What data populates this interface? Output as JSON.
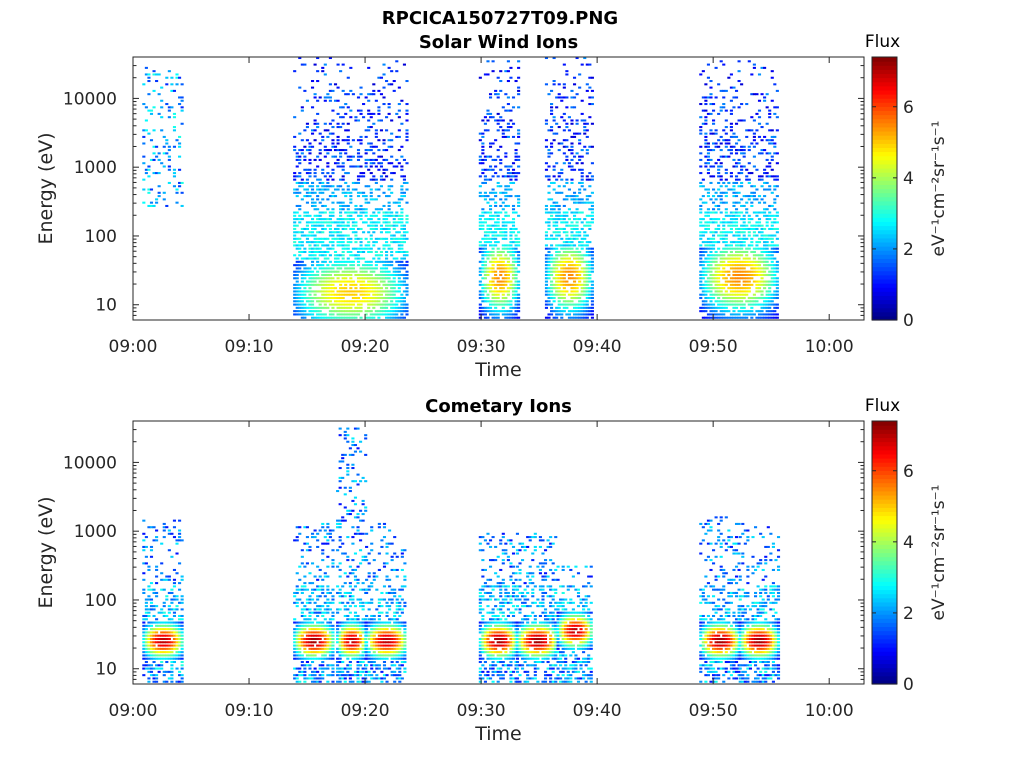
{
  "figure_title": "RPCICA150727T09.PNG",
  "chart_data": [
    {
      "type": "heatmap",
      "title": "Solar Wind Ions",
      "xlabel": "Time",
      "ylabel": "Energy (eV)",
      "x_ticks": [
        "09:00",
        "09:10",
        "09:20",
        "09:30",
        "09:40",
        "09:50",
        "10:00"
      ],
      "x_range_minutes": [
        0,
        63
      ],
      "y_scale": "log",
      "y_ticks": [
        10,
        100,
        1000,
        10000
      ],
      "y_range": [
        6,
        40000
      ],
      "colorbar": {
        "label": "eV⁻¹cm⁻²sr⁻¹s⁻¹",
        "title": "Flux",
        "ticks": [
          0,
          2,
          4,
          6
        ],
        "range": [
          0,
          7.4
        ],
        "colormap": "jet"
      },
      "bursts": [
        {
          "start_min": 0.8,
          "end_min": 4.2,
          "core_energy_eV": null,
          "peak_flux": 3.0,
          "max_energy_eV": 28000
        },
        {
          "start_min": 13.8,
          "end_min": 23.5,
          "core_energy_eV": 15,
          "peak_flux": 5.0,
          "max_energy_eV": 38000
        },
        {
          "start_min": 29.8,
          "end_min": 33.2,
          "core_energy_eV": 25,
          "peak_flux": 5.5,
          "max_energy_eV": 38000
        },
        {
          "start_min": 35.5,
          "end_min": 39.5,
          "core_energy_eV": 25,
          "peak_flux": 5.5,
          "max_energy_eV": 38000
        },
        {
          "start_min": 48.8,
          "end_min": 55.5,
          "core_energy_eV": 25,
          "peak_flux": 5.5,
          "max_energy_eV": 38000
        }
      ]
    },
    {
      "type": "heatmap",
      "title": "Cometary Ions",
      "xlabel": "Time",
      "ylabel": "Energy (eV)",
      "x_ticks": [
        "09:00",
        "09:10",
        "09:20",
        "09:30",
        "09:40",
        "09:50",
        "10:00"
      ],
      "x_range_minutes": [
        0,
        63
      ],
      "y_scale": "log",
      "y_ticks": [
        10,
        100,
        1000,
        10000
      ],
      "y_range": [
        6,
        40000
      ],
      "colorbar": {
        "label": "eV⁻¹cm⁻²sr⁻¹s⁻¹",
        "title": "Flux",
        "ticks": [
          0,
          2,
          4,
          6
        ],
        "range": [
          0,
          7.4
        ],
        "colormap": "jet"
      },
      "bursts": [
        {
          "start_min": 0.8,
          "end_min": 4.2,
          "core_energy_eV": 25,
          "peak_flux": 7.0,
          "max_energy_eV": 1500
        },
        {
          "start_min": 13.8,
          "end_min": 17.2,
          "core_energy_eV": 25,
          "peak_flux": 7.2,
          "max_energy_eV": 1300
        },
        {
          "start_min": 17.5,
          "end_min": 20.0,
          "core_energy_eV": 25,
          "peak_flux": 7.0,
          "max_energy_eV": 33000
        },
        {
          "start_min": 20.0,
          "end_min": 23.5,
          "core_energy_eV": 25,
          "peak_flux": 7.0,
          "max_energy_eV": 1300
        },
        {
          "start_min": 29.8,
          "end_min": 33.0,
          "core_energy_eV": 25,
          "peak_flux": 7.2,
          "max_energy_eV": 1000
        },
        {
          "start_min": 33.0,
          "end_min": 36.5,
          "core_energy_eV": 25,
          "peak_flux": 7.2,
          "max_energy_eV": 1000
        },
        {
          "start_min": 36.5,
          "end_min": 39.5,
          "core_energy_eV": 35,
          "peak_flux": 7.0,
          "max_energy_eV": 300
        },
        {
          "start_min": 48.8,
          "end_min": 52.2,
          "core_energy_eV": 25,
          "peak_flux": 7.2,
          "max_energy_eV": 1600
        },
        {
          "start_min": 52.2,
          "end_min": 55.5,
          "core_energy_eV": 25,
          "peak_flux": 7.2,
          "max_energy_eV": 1300
        }
      ]
    }
  ]
}
